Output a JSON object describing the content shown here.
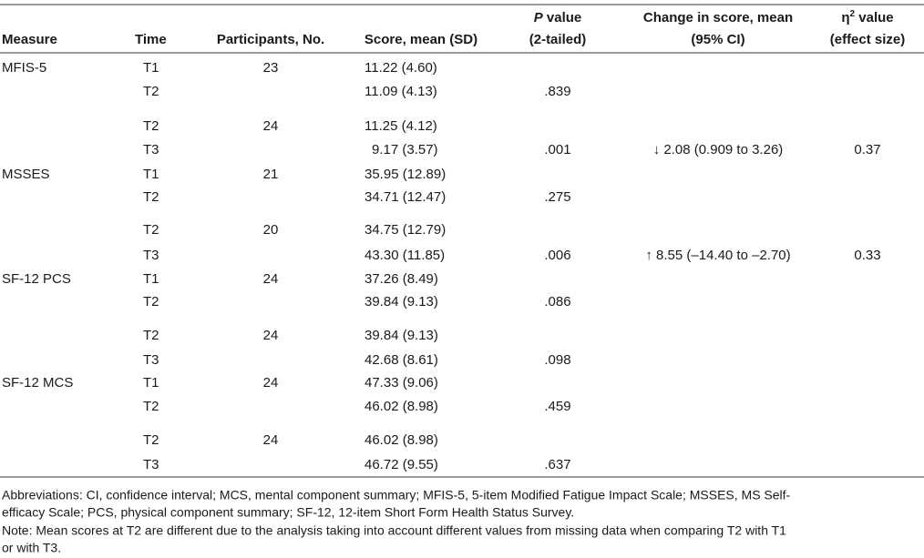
{
  "header": {
    "measure": "Measure",
    "time": "Time",
    "participants": "Participants, No.",
    "score": "Score, mean (SD)",
    "p_value": {
      "italic": "P",
      "line1": " value",
      "line2": "(2-tailed)"
    },
    "change": {
      "line1": "Change in score, mean",
      "line2": "(95% CI)"
    },
    "effect": {
      "symbol": "η",
      "sup": "2",
      "line1": " value",
      "line2": "(effect size)"
    }
  },
  "table": {
    "rows": [
      {
        "measure": "MFIS-5",
        "time": "T1",
        "participants": "23",
        "score": "11.22 (4.60)"
      },
      {
        "time": "T2",
        "score": "11.09 (4.13)",
        "p": ".839"
      },
      {
        "time": "T2",
        "participants": "24",
        "score": "11.25 (4.12)"
      },
      {
        "time": "T3",
        "score": "9.17 (3.57)",
        "p": ".001",
        "change": "↓ 2.08 (0.909 to 3.26)",
        "effect": "0.37"
      },
      {
        "measure": "MSSES",
        "time": "T1",
        "participants": "21",
        "score": "35.95 (12.89)"
      },
      {
        "time": "T2",
        "score": "34.71 (12.47)",
        "p": ".275"
      },
      {
        "time": "T2",
        "participants": "20",
        "score": "34.75 (12.79)"
      },
      {
        "time": "T3",
        "score": "43.30 (11.85)",
        "p": ".006",
        "change": "↑ 8.55 (–14.40 to –2.70)",
        "effect": "0.33"
      },
      {
        "measure": "SF-12 PCS",
        "time": "T1",
        "participants": "24",
        "score": "37.26 (8.49)"
      },
      {
        "time": "T2",
        "score": "39.84 (9.13)",
        "p": ".086"
      },
      {
        "time": "T2",
        "participants": "24",
        "score": "39.84 (9.13)"
      },
      {
        "time": "T3",
        "score": "42.68 (8.61)",
        "p": ".098"
      },
      {
        "measure": "SF-12 MCS",
        "time": "T1",
        "participants": "24",
        "score": "47.33 (9.06)"
      },
      {
        "time": "T2",
        "score": "46.02 (8.98)",
        "p": ".459"
      },
      {
        "time": "T2",
        "participants": "24",
        "score": "46.02 (8.98)"
      },
      {
        "time": "T3",
        "score": "46.72 (9.55)",
        "p": ".637"
      }
    ]
  },
  "notes": [
    "Abbreviations: CI, confidence interval; MCS, mental component summary; MFIS-5, 5-item Modified Fatigue Impact Scale; MSSES, MS Self-",
    "efficacy Scale; PCS, physical component summary; SF-12, 12-item Short Form Health Status Survey.",
    "Note: Mean scores at T2 are different due to the analysis taking into account different values from missing data when comparing T2 with T1",
    "or with T3."
  ]
}
